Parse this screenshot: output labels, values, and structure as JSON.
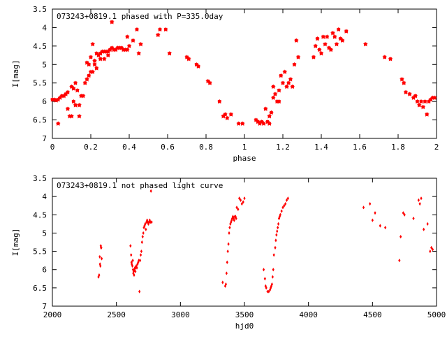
{
  "chart_data": [
    {
      "type": "scatter",
      "title": "073243+0819.1 phased with P=335.0day",
      "xlabel": "phase",
      "ylabel": "I[mag]",
      "xlim": [
        0,
        2
      ],
      "ylim": [
        7,
        3.5
      ],
      "y_inverted": true,
      "xticks": [
        "0",
        "0.2",
        "0.4",
        "0.6",
        "0.8",
        "1",
        "1.2",
        "1.4",
        "1.6",
        "1.8",
        "2"
      ],
      "yticks": [
        "3.5",
        "4",
        "4.5",
        "5",
        "5.5",
        "6",
        "6.5",
        "7"
      ],
      "marker": "filled-star",
      "color": "#ff0000",
      "series": [
        {
          "x": [
            0.0,
            0.01,
            0.02,
            0.03,
            0.03,
            0.04,
            0.05,
            0.06,
            0.07,
            0.08,
            0.08,
            0.09,
            0.1,
            0.1,
            0.11,
            0.11,
            0.12,
            0.12,
            0.13,
            0.14,
            0.14,
            0.15,
            0.16,
            0.17,
            0.18,
            0.18,
            0.19,
            0.19,
            0.2,
            0.2,
            0.21,
            0.21,
            0.22,
            0.22,
            0.23,
            0.23,
            0.24,
            0.25,
            0.25,
            0.26,
            0.27,
            0.27,
            0.28,
            0.29,
            0.29,
            0.3,
            0.31,
            0.31,
            0.32,
            0.33,
            0.34,
            0.35,
            0.36,
            0.37,
            0.38,
            0.39,
            0.39,
            0.4,
            0.42,
            0.44,
            0.45,
            0.46,
            0.55,
            0.56,
            0.59,
            0.61,
            0.7,
            0.71,
            0.75,
            0.76,
            0.81,
            0.82,
            0.87,
            0.89,
            0.9,
            0.91,
            0.93,
            0.97,
            0.99,
            1.06,
            1.07,
            1.08,
            1.09,
            1.1,
            1.11,
            1.12,
            1.13,
            1.13,
            1.14,
            1.15,
            1.15,
            1.16,
            1.17,
            1.18,
            1.18,
            1.19,
            1.2,
            1.21,
            1.22,
            1.23,
            1.24,
            1.25,
            1.26,
            1.27,
            1.28,
            1.36,
            1.37,
            1.38,
            1.39,
            1.4,
            1.41,
            1.42,
            1.43,
            1.44,
            1.45,
            1.46,
            1.47,
            1.48,
            1.49,
            1.5,
            1.51,
            1.53,
            1.63,
            1.73,
            1.76,
            1.82,
            1.83,
            1.84,
            1.86,
            1.88,
            1.89,
            1.9,
            1.91,
            1.92,
            1.93,
            1.94,
            1.95,
            1.96,
            1.97,
            1.98,
            1.99
          ],
          "y": [
            5.95,
            5.95,
            5.97,
            6.6,
            5.95,
            5.9,
            5.85,
            5.85,
            5.8,
            5.75,
            6.2,
            6.4,
            5.6,
            6.4,
            5.65,
            6.0,
            5.5,
            6.1,
            5.7,
            6.1,
            6.4,
            5.85,
            5.85,
            5.5,
            4.95,
            5.4,
            5.0,
            5.3,
            4.8,
            5.2,
            4.45,
            5.2,
            4.9,
            5.0,
            4.7,
            5.1,
            4.75,
            4.7,
            4.85,
            4.65,
            4.65,
            4.85,
            4.65,
            4.65,
            4.75,
            4.6,
            4.55,
            3.85,
            4.6,
            4.6,
            4.55,
            4.55,
            4.55,
            4.6,
            4.6,
            4.25,
            4.6,
            4.5,
            4.35,
            4.05,
            4.7,
            4.45,
            4.2,
            4.05,
            4.05,
            4.7,
            4.8,
            4.85,
            5.0,
            5.05,
            5.45,
            5.5,
            6.0,
            6.4,
            6.35,
            6.45,
            6.35,
            6.6,
            6.6,
            6.5,
            6.55,
            6.6,
            6.55,
            6.6,
            6.2,
            6.55,
            6.6,
            6.4,
            6.3,
            5.6,
            5.9,
            5.8,
            6.0,
            5.7,
            6.0,
            5.3,
            5.5,
            5.2,
            5.6,
            5.5,
            5.4,
            5.6,
            5.0,
            4.35,
            4.8,
            4.8,
            4.5,
            4.3,
            4.6,
            4.7,
            4.25,
            4.45,
            4.25,
            4.55,
            4.6,
            4.15,
            4.25,
            4.45,
            4.05,
            4.3,
            4.35,
            4.1,
            4.45,
            4.8,
            4.85,
            5.4,
            5.5,
            5.75,
            5.8,
            5.9,
            5.85,
            6.0,
            6.1,
            6.0,
            6.15,
            6.0,
            6.35,
            6.0,
            5.95,
            5.9,
            5.9
          ]
        }
      ]
    },
    {
      "type": "scatter",
      "title": "073243+0819.1 not phased light curve",
      "xlabel": "hjd0",
      "ylabel": "I[mag]",
      "xlim": [
        2000,
        5000
      ],
      "ylim": [
        7,
        3.5
      ],
      "y_inverted": true,
      "xticks": [
        "2000",
        "2500",
        "3000",
        "3500",
        "4000",
        "4500",
        "5000"
      ],
      "yticks": [
        "3.5",
        "4",
        "4.5",
        "5",
        "5.5",
        "6",
        "6.5",
        "7"
      ],
      "marker": "filled-diamond",
      "color": "#ff0000",
      "series": [
        {
          "x": [
            2360,
            2365,
            2370,
            2372,
            2375,
            2378,
            2380,
            2382,
            2385,
            2610,
            2615,
            2618,
            2620,
            2625,
            2628,
            2630,
            2632,
            2635,
            2638,
            2640,
            2645,
            2648,
            2650,
            2655,
            2660,
            2665,
            2670,
            2675,
            2680,
            2685,
            2690,
            2695,
            2700,
            2705,
            2710,
            2715,
            2720,
            2725,
            2730,
            2735,
            2740,
            2745,
            2750,
            2755,
            2760,
            2765,
            2770,
            2775,
            3330,
            3350,
            3355,
            3360,
            3365,
            3370,
            3375,
            3380,
            3385,
            3390,
            3395,
            3400,
            3405,
            3410,
            3415,
            3420,
            3425,
            3430,
            3435,
            3440,
            3450,
            3460,
            3470,
            3480,
            3490,
            3500,
            3650,
            3660,
            3665,
            3670,
            3680,
            3690,
            3700,
            3705,
            3710,
            3715,
            3720,
            3725,
            3730,
            3740,
            3745,
            3750,
            3755,
            3760,
            3765,
            3770,
            3775,
            3780,
            3790,
            3800,
            3810,
            3820,
            3830,
            3840,
            4430,
            4480,
            4500,
            4520,
            4560,
            4600,
            4710,
            4720,
            4740,
            4750,
            4820,
            4860,
            4870,
            4880,
            4900,
            4930,
            4950,
            4960,
            4970
          ],
          "y": [
            6.2,
            6.15,
            5.65,
            5.85,
            5.9,
            5.35,
            5.4,
            5.4,
            5.7,
            5.35,
            5.6,
            5.8,
            5.85,
            5.9,
            5.75,
            6.0,
            6.1,
            6.05,
            6.15,
            6.0,
            5.95,
            6.05,
            5.95,
            5.9,
            5.95,
            5.85,
            5.8,
            5.75,
            6.6,
            5.75,
            5.6,
            5.5,
            5.25,
            5.1,
            5.0,
            4.85,
            4.8,
            4.75,
            4.9,
            4.7,
            4.65,
            4.7,
            4.75,
            4.7,
            4.65,
            4.7,
            3.85,
            4.7,
            6.35,
            6.45,
            6.4,
            6.1,
            5.8,
            5.5,
            5.3,
            5.0,
            4.85,
            4.75,
            4.7,
            4.65,
            4.6,
            4.55,
            4.6,
            4.65,
            4.55,
            4.55,
            4.6,
            4.3,
            4.35,
            4.05,
            4.1,
            4.2,
            4.15,
            4.05,
            6.0,
            6.25,
            6.45,
            6.5,
            6.6,
            6.6,
            6.55,
            6.5,
            6.45,
            6.4,
            6.2,
            6.0,
            5.6,
            5.4,
            5.2,
            5.05,
            4.95,
            4.85,
            4.75,
            4.6,
            4.55,
            4.5,
            4.4,
            4.3,
            4.25,
            4.2,
            4.1,
            4.05,
            4.3,
            4.2,
            4.65,
            4.45,
            4.8,
            4.85,
            5.75,
            5.1,
            4.45,
            4.5,
            4.6,
            4.1,
            4.2,
            4.05,
            4.9,
            4.75,
            5.5,
            5.4,
            5.45
          ]
        }
      ]
    }
  ]
}
